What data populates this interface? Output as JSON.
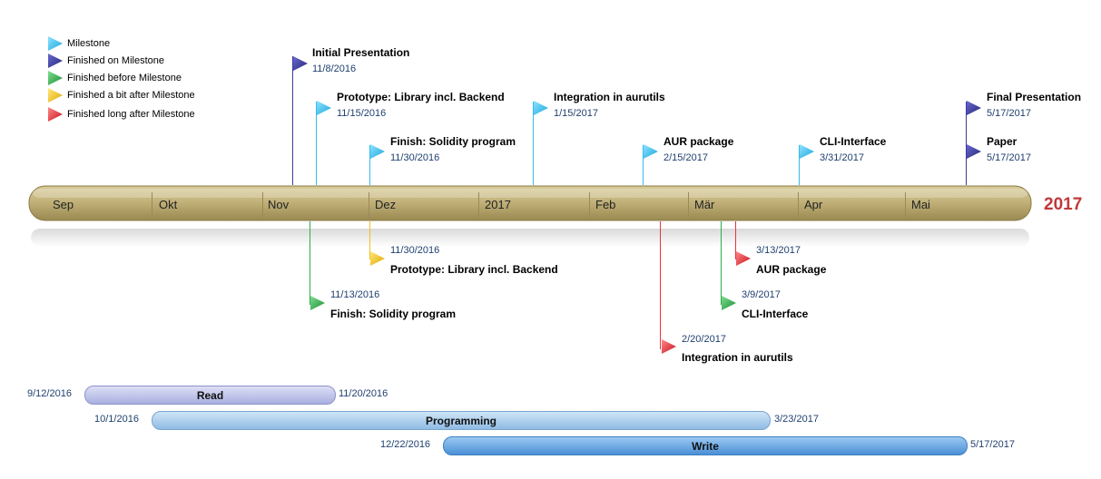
{
  "legend": [
    {
      "label": "Milestone",
      "icon": "flag-cyan-icon",
      "color": "#33bbee"
    },
    {
      "label": "Finished on Milestone",
      "icon": "flag-navy-icon",
      "color": "#3b3b9c"
    },
    {
      "label": "Finished before Milestone",
      "icon": "flag-green-icon",
      "color": "#2cab4a"
    },
    {
      "label": "Finished a bit after Milestone",
      "icon": "flag-yellow-icon",
      "color": "#f0c020"
    },
    {
      "label": "Finished long after Milestone",
      "icon": "flag-red-icon",
      "color": "#e8333a"
    }
  ],
  "timeline": {
    "year_label": "2017",
    "months": [
      "Sep",
      "Okt",
      "Nov",
      "Dez",
      "2017",
      "Feb",
      "Mär",
      "Apr",
      "Mai"
    ]
  },
  "milestones_above": [
    {
      "title": "Initial Presentation",
      "date": "11/8/2016",
      "status": "on"
    },
    {
      "title": "Prototype: Library incl. Backend",
      "date": "11/15/2016",
      "status": "planned"
    },
    {
      "title": "Finish: Solidity program",
      "date": "11/30/2016",
      "status": "planned"
    },
    {
      "title": "Integration in aurutils",
      "date": "1/15/2017",
      "status": "planned"
    },
    {
      "title": "AUR package",
      "date": "2/15/2017",
      "status": "planned"
    },
    {
      "title": "CLI-Interface",
      "date": "3/31/2017",
      "status": "planned"
    },
    {
      "title": "Final Presentation",
      "date": "5/17/2017",
      "status": "on"
    },
    {
      "title": "Paper",
      "date": "5/17/2017",
      "status": "on"
    }
  ],
  "milestones_below": [
    {
      "title": "Prototype: Library incl. Backend",
      "date": "11/30/2016",
      "status": "bit_after"
    },
    {
      "title": "Finish: Solidity program",
      "date": "11/13/2016",
      "status": "before"
    },
    {
      "title": "AUR package",
      "date": "3/13/2017",
      "status": "long_after"
    },
    {
      "title": "CLI-Interface",
      "date": "3/9/2017",
      "status": "before"
    },
    {
      "title": "Integration in aurutils",
      "date": "2/20/2017",
      "status": "long_after"
    }
  ],
  "tasks": [
    {
      "label": "Read",
      "start": "9/12/2016",
      "end": "11/20/2016"
    },
    {
      "label": "Programming",
      "start": "10/1/2016",
      "end": "3/23/2017"
    },
    {
      "label": "Write",
      "start": "12/22/2016",
      "end": "5/17/2017"
    }
  ]
}
